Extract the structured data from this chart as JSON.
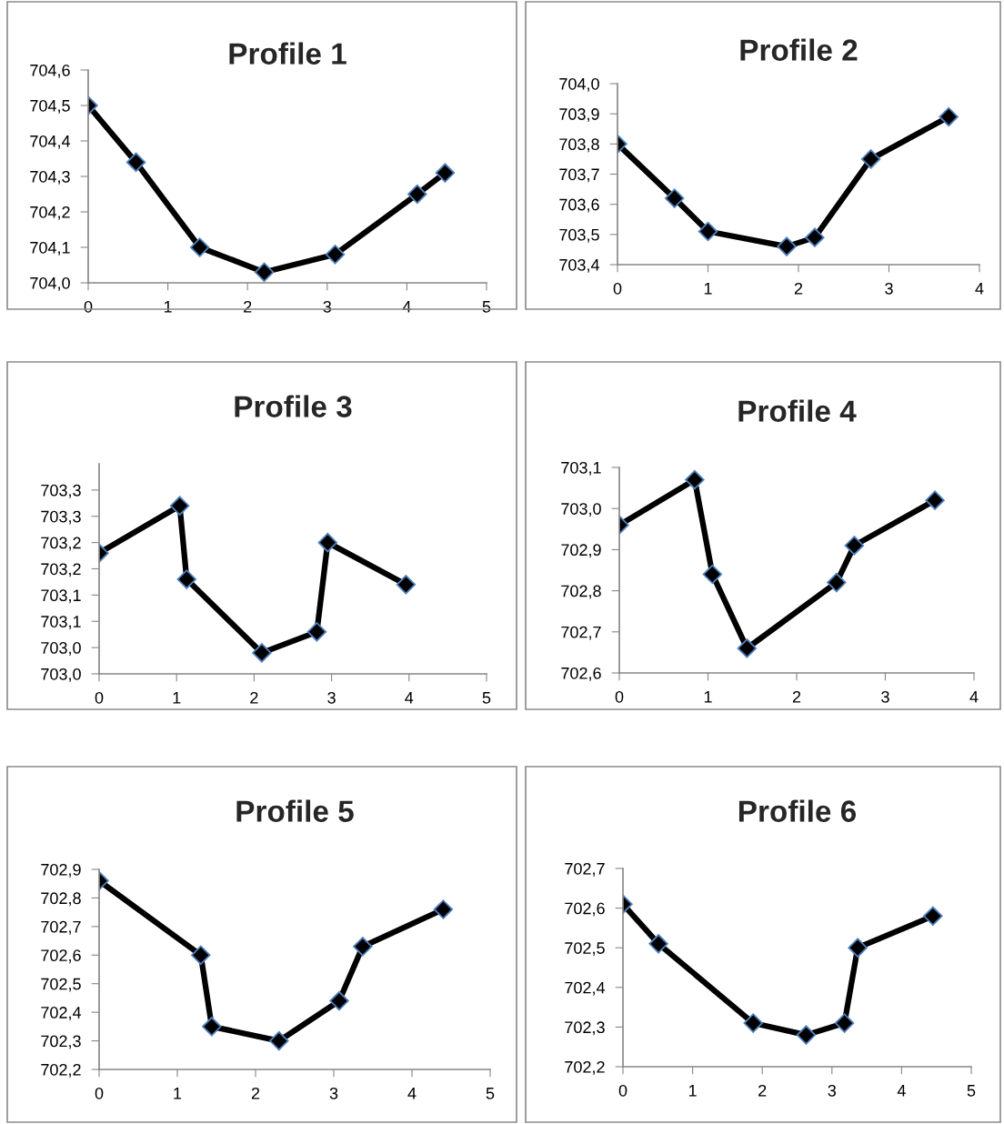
{
  "chart_data": [
    {
      "type": "line",
      "title": "Profile 1",
      "marker": "diamond",
      "line_style": "solid",
      "grid": false,
      "series": [
        {
          "color": "#000000",
          "x": [
            0,
            0.6,
            1.4,
            2.21,
            3.1,
            4.13,
            4.48
          ],
          "values": [
            704.5,
            704.34,
            704.1,
            704.03,
            704.08,
            704.25,
            704.31
          ]
        }
      ],
      "xlim": [
        0,
        5
      ],
      "xticks": [
        0,
        1,
        2,
        3,
        4,
        5
      ],
      "ylim": [
        704.0,
        704.6
      ],
      "yticks": [
        {
          "value": 704.0,
          "label": "704,0"
        },
        {
          "value": 704.1,
          "label": "704,1"
        },
        {
          "value": 704.2,
          "label": "704,2"
        },
        {
          "value": 704.3,
          "label": "704,3"
        },
        {
          "value": 704.4,
          "label": "704,4"
        },
        {
          "value": 704.5,
          "label": "704,5"
        },
        {
          "value": 704.6,
          "label": "704,6"
        }
      ]
    },
    {
      "type": "line",
      "title": "Profile 2",
      "marker": "diamond",
      "line_style": "solid",
      "grid": false,
      "series": [
        {
          "color": "#000000",
          "x": [
            0,
            0.63,
            1.0,
            1.87,
            2.18,
            2.8,
            3.66
          ],
          "values": [
            703.8,
            703.62,
            703.51,
            703.46,
            703.49,
            703.75,
            703.89
          ]
        }
      ],
      "xlim": [
        0,
        4
      ],
      "xticks": [
        0,
        1,
        2,
        3,
        4
      ],
      "ylim": [
        703.4,
        704.0
      ],
      "yticks": [
        {
          "value": 703.4,
          "label": "703,4"
        },
        {
          "value": 703.5,
          "label": "703,5"
        },
        {
          "value": 703.6,
          "label": "703,6"
        },
        {
          "value": 703.7,
          "label": "703,7"
        },
        {
          "value": 703.8,
          "label": "703,8"
        },
        {
          "value": 703.9,
          "label": "703,9"
        },
        {
          "value": 704.0,
          "label": "704,0"
        }
      ]
    },
    {
      "type": "line",
      "title": "Profile 3",
      "marker": "diamond",
      "line_style": "solid",
      "grid": false,
      "series": [
        {
          "color": "#000000",
          "x": [
            0,
            1.04,
            1.13,
            2.1,
            2.81,
            2.95,
            3.96
          ],
          "values": [
            703.18,
            703.27,
            703.13,
            702.99,
            703.03,
            703.2,
            703.12
          ]
        }
      ],
      "xlim": [
        0,
        5
      ],
      "xticks": [
        0,
        1,
        2,
        3,
        4,
        5
      ],
      "ylim": [
        702.95,
        703.35
      ],
      "yticks": [
        {
          "value": 702.95,
          "label": "703,0"
        },
        {
          "value": 703.0,
          "label": "703,0"
        },
        {
          "value": 703.05,
          "label": "703,1"
        },
        {
          "value": 703.1,
          "label": "703,1"
        },
        {
          "value": 703.15,
          "label": "703,2"
        },
        {
          "value": 703.2,
          "label": "703,2"
        },
        {
          "value": 703.25,
          "label": "703,3"
        },
        {
          "value": 703.3,
          "label": "703,3"
        }
      ]
    },
    {
      "type": "line",
      "title": "Profile 4",
      "marker": "diamond",
      "line_style": "solid",
      "grid": false,
      "series": [
        {
          "color": "#000000",
          "x": [
            0,
            0.85,
            1.05,
            1.44,
            2.45,
            2.65,
            3.56
          ],
          "values": [
            702.96,
            703.07,
            702.84,
            702.66,
            702.82,
            702.91,
            703.02
          ]
        }
      ],
      "xlim": [
        0,
        4
      ],
      "xticks": [
        0,
        1,
        2,
        3,
        4
      ],
      "ylim": [
        702.6,
        703.1
      ],
      "yticks": [
        {
          "value": 702.6,
          "label": "702,6"
        },
        {
          "value": 702.7,
          "label": "702,7"
        },
        {
          "value": 702.8,
          "label": "702,8"
        },
        {
          "value": 702.9,
          "label": "702,9"
        },
        {
          "value": 703.0,
          "label": "703,0"
        },
        {
          "value": 703.1,
          "label": "703,1"
        }
      ]
    },
    {
      "type": "line",
      "title": "Profile 5",
      "marker": "diamond",
      "line_style": "solid",
      "grid": false,
      "series": [
        {
          "color": "#000000",
          "x": [
            0,
            1.3,
            1.44,
            2.3,
            3.07,
            3.37,
            4.4
          ],
          "values": [
            702.86,
            702.6,
            702.35,
            702.3,
            702.44,
            702.63,
            702.76
          ]
        }
      ],
      "xlim": [
        0,
        5
      ],
      "xticks": [
        0,
        1,
        2,
        3,
        4,
        5
      ],
      "ylim": [
        702.2,
        702.9
      ],
      "yticks": [
        {
          "value": 702.2,
          "label": "702,2"
        },
        {
          "value": 702.3,
          "label": "702,3"
        },
        {
          "value": 702.4,
          "label": "702,4"
        },
        {
          "value": 702.5,
          "label": "702,5"
        },
        {
          "value": 702.6,
          "label": "702,6"
        },
        {
          "value": 702.7,
          "label": "702,7"
        },
        {
          "value": 702.8,
          "label": "702,8"
        },
        {
          "value": 702.9,
          "label": "702,9"
        }
      ]
    },
    {
      "type": "line",
      "title": "Profile 6",
      "marker": "diamond",
      "line_style": "solid",
      "grid": false,
      "series": [
        {
          "color": "#000000",
          "x": [
            0,
            0.51,
            1.87,
            2.63,
            3.18,
            3.37,
            4.45
          ],
          "values": [
            702.61,
            702.51,
            702.31,
            702.28,
            702.31,
            702.5,
            702.58
          ]
        }
      ],
      "xlim": [
        0,
        5
      ],
      "xticks": [
        0,
        1,
        2,
        3,
        4,
        5
      ],
      "ylim": [
        702.2,
        702.7
      ],
      "yticks": [
        {
          "value": 702.2,
          "label": "702,2"
        },
        {
          "value": 702.3,
          "label": "702,3"
        },
        {
          "value": 702.4,
          "label": "702,4"
        },
        {
          "value": 702.5,
          "label": "702,5"
        },
        {
          "value": 702.6,
          "label": "702,6"
        },
        {
          "value": 702.7,
          "label": "702,7"
        }
      ]
    }
  ]
}
